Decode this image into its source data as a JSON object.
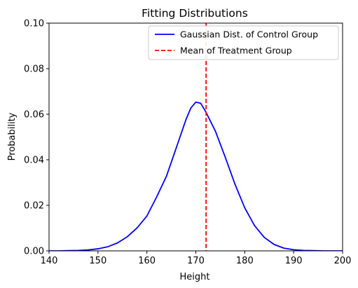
{
  "chart_data": {
    "type": "line",
    "title": "Fitting Distributions",
    "xlabel": "Height",
    "ylabel": "Probability",
    "xlim": [
      140,
      200
    ],
    "ylim": [
      0.0,
      0.1
    ],
    "xticks": [
      140,
      150,
      160,
      170,
      180,
      190,
      200
    ],
    "yticks": [
      0.0,
      0.02,
      0.04,
      0.06,
      0.08,
      0.1
    ],
    "xtick_labels": [
      "140",
      "150",
      "160",
      "170",
      "180",
      "190",
      "200"
    ],
    "ytick_labels": [
      "0.00",
      "0.02",
      "0.04",
      "0.06",
      "0.08",
      "0.10"
    ],
    "grid": false,
    "legend_position": "top-right",
    "series": [
      {
        "name": "Gaussian Dist. of Control Group",
        "color": "#0000ff",
        "style": "solid",
        "x": [
          140,
          142,
          144,
          146,
          148,
          150,
          152,
          154,
          156,
          158,
          160,
          162,
          164,
          166,
          168,
          169,
          170,
          171,
          172,
          174,
          176,
          178,
          180,
          182,
          184,
          186,
          188,
          190,
          192,
          194,
          196,
          198,
          200
        ],
        "y": [
          0.0,
          0.0,
          0.0001,
          0.0002,
          0.0004,
          0.0009,
          0.0018,
          0.0035,
          0.0062,
          0.0101,
          0.0153,
          0.0237,
          0.0328,
          0.0452,
          0.0577,
          0.0628,
          0.0653,
          0.0648,
          0.0612,
          0.0526,
          0.0412,
          0.0293,
          0.0189,
          0.0111,
          0.0059,
          0.0028,
          0.0012,
          0.0005,
          0.0002,
          0.0001,
          0.0,
          0.0,
          0.0
        ]
      },
      {
        "name": "Mean of Treatment Group",
        "color": "#ff0000",
        "style": "dashed",
        "vline_x": 172.1
      }
    ]
  }
}
